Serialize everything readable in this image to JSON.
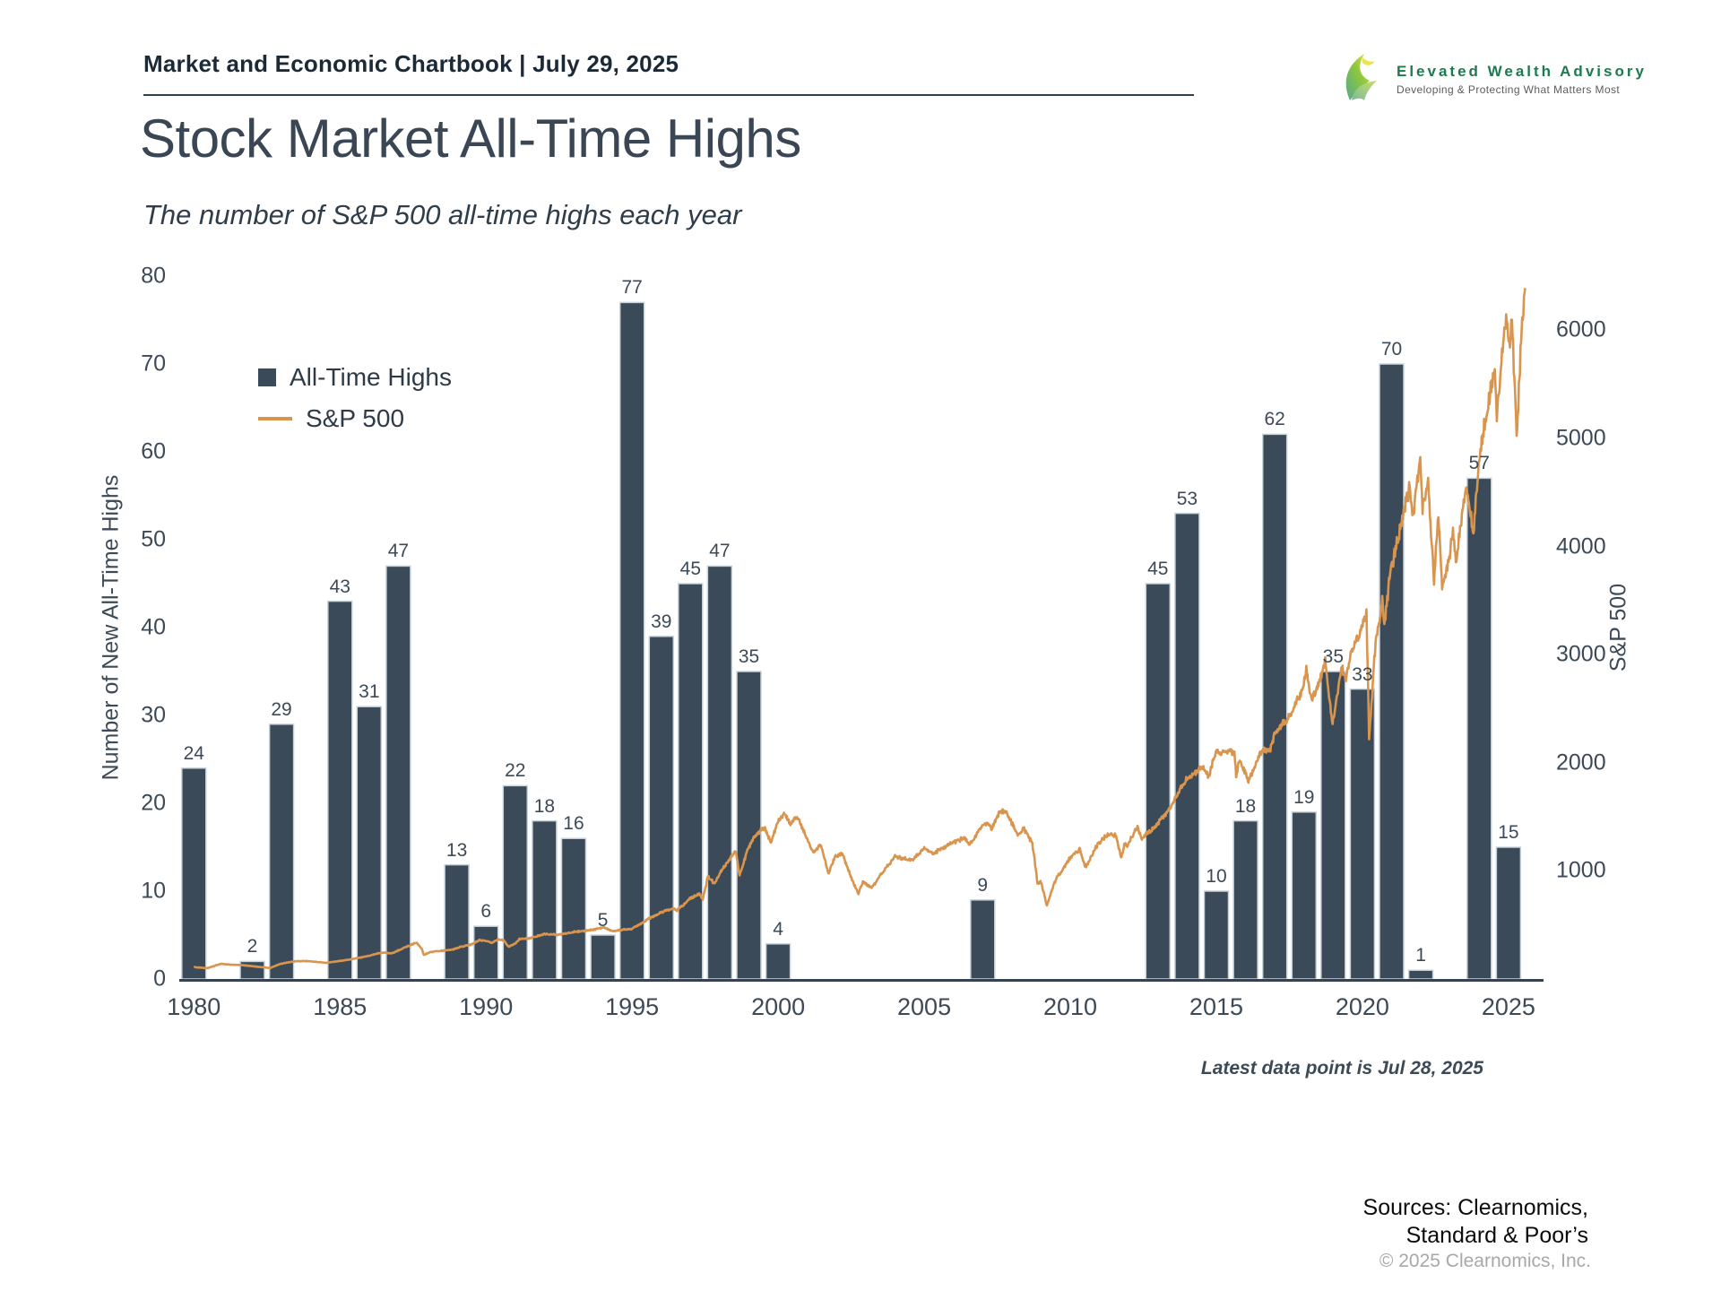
{
  "header": {
    "chartbook_label": "Market and Economic Chartbook | July 29, 2025",
    "logo": {
      "brand": "Elevated Wealth Advisory",
      "tagline": "Developing & Protecting What Matters Most",
      "brand_color": "#1e7a4d"
    },
    "title": "Stock Market All-Time Highs",
    "subtitle": "The number of S&P 500 all-time highs each year"
  },
  "footer": {
    "latest_note": "Latest data point is Jul 28, 2025",
    "sources_line1": "Sources: Clearnomics,",
    "sources_line2": "Standard & Poor’s",
    "copyright": "© 2025 Clearnomics, Inc."
  },
  "chart_data": {
    "type": "bar",
    "title": "Stock Market All-Time Highs",
    "subtitle": "The number of S&P 500 all-time highs each year",
    "legend_position": "upper-left-inside",
    "grid": false,
    "legend": [
      {
        "label": "All-Time Highs",
        "type": "bar",
        "color": "#3b4a59"
      },
      {
        "label": "S&P 500",
        "type": "line",
        "color": "#d9954d"
      }
    ],
    "x_axis": {
      "range": [
        1979.5,
        2026.2
      ],
      "ticks": [
        1980,
        1985,
        1990,
        1995,
        2000,
        2005,
        2010,
        2015,
        2020,
        2025
      ]
    },
    "left_axis": {
      "label": "Number of New All-Time Highs",
      "range": [
        0,
        80
      ],
      "ticks": [
        0,
        10,
        20,
        30,
        40,
        50,
        60,
        70,
        80
      ]
    },
    "right_axis": {
      "label": "S&P 500",
      "range": [
        0,
        6500
      ],
      "ticks": [
        1000,
        2000,
        3000,
        4000,
        5000,
        6000
      ]
    },
    "bars": {
      "series_name": "All-Time Highs",
      "years": [
        1980,
        1981,
        1982,
        1983,
        1984,
        1985,
        1986,
        1987,
        1988,
        1989,
        1990,
        1991,
        1992,
        1993,
        1994,
        1995,
        1996,
        1997,
        1998,
        1999,
        2000,
        2001,
        2002,
        2003,
        2004,
        2005,
        2006,
        2007,
        2008,
        2009,
        2010,
        2011,
        2012,
        2013,
        2014,
        2015,
        2016,
        2017,
        2018,
        2019,
        2020,
        2021,
        2022,
        2023,
        2024,
        2025
      ],
      "values": [
        24,
        0,
        2,
        29,
        0,
        43,
        31,
        47,
        0,
        13,
        6,
        22,
        18,
        16,
        5,
        77,
        39,
        45,
        47,
        35,
        4,
        0,
        0,
        0,
        0,
        0,
        0,
        9,
        0,
        0,
        0,
        0,
        0,
        45,
        53,
        10,
        18,
        62,
        19,
        35,
        33,
        70,
        1,
        0,
        57,
        15
      ]
    },
    "sp500_line": {
      "series_name": "S&P 500",
      "anchors": [
        [
          1980.0,
          110
        ],
        [
          1980.45,
          100
        ],
        [
          1980.92,
          140
        ],
        [
          1981.3,
          132
        ],
        [
          1981.6,
          130
        ],
        [
          1982.3,
          110
        ],
        [
          1982.62,
          102
        ],
        [
          1982.95,
          140
        ],
        [
          1983.5,
          165
        ],
        [
          1983.9,
          165
        ],
        [
          1984.3,
          155
        ],
        [
          1984.55,
          150
        ],
        [
          1985.0,
          167
        ],
        [
          1985.5,
          188
        ],
        [
          1985.95,
          211
        ],
        [
          1986.3,
          238
        ],
        [
          1986.55,
          245
        ],
        [
          1986.75,
          235
        ],
        [
          1987.0,
          264
        ],
        [
          1987.2,
          290
        ],
        [
          1987.62,
          336
        ],
        [
          1987.8,
          282
        ],
        [
          1987.87,
          224
        ],
        [
          1988.1,
          250
        ],
        [
          1988.5,
          262
        ],
        [
          1988.85,
          272
        ],
        [
          1989.1,
          295
        ],
        [
          1989.5,
          320
        ],
        [
          1989.78,
          359
        ],
        [
          1990.0,
          353
        ],
        [
          1990.2,
          333
        ],
        [
          1990.42,
          367
        ],
        [
          1990.6,
          358
        ],
        [
          1990.78,
          300
        ],
        [
          1991.0,
          325
        ],
        [
          1991.15,
          370
        ],
        [
          1991.5,
          378
        ],
        [
          1992.0,
          415
        ],
        [
          1992.5,
          410
        ],
        [
          1993.0,
          435
        ],
        [
          1993.5,
          450
        ],
        [
          1994.05,
          475
        ],
        [
          1994.3,
          445
        ],
        [
          1994.7,
          455
        ],
        [
          1995.0,
          465
        ],
        [
          1995.5,
          545
        ],
        [
          1996.0,
          618
        ],
        [
          1996.4,
          650
        ],
        [
          1996.55,
          635
        ],
        [
          1997.0,
          745
        ],
        [
          1997.3,
          790
        ],
        [
          1997.42,
          740
        ],
        [
          1997.6,
          950
        ],
        [
          1997.82,
          880
        ],
        [
          1998.0,
          975
        ],
        [
          1998.3,
          1100
        ],
        [
          1998.55,
          1180
        ],
        [
          1998.68,
          960
        ],
        [
          1998.95,
          1190
        ],
        [
          1999.2,
          1320
        ],
        [
          1999.55,
          1400
        ],
        [
          1999.75,
          1260
        ],
        [
          2000.0,
          1455
        ],
        [
          2000.22,
          1525
        ],
        [
          2000.42,
          1430
        ],
        [
          2000.65,
          1510
        ],
        [
          2000.95,
          1320
        ],
        [
          2001.2,
          1170
        ],
        [
          2001.45,
          1250
        ],
        [
          2001.72,
          975
        ],
        [
          2001.95,
          1140
        ],
        [
          2002.2,
          1160
        ],
        [
          2002.55,
          900
        ],
        [
          2002.75,
          790
        ],
        [
          2002.9,
          900
        ],
        [
          2003.2,
          840
        ],
        [
          2003.6,
          1000
        ],
        [
          2004.0,
          1130
        ],
        [
          2004.6,
          1100
        ],
        [
          2005.0,
          1210
        ],
        [
          2005.3,
          1160
        ],
        [
          2005.95,
          1260
        ],
        [
          2006.4,
          1310
        ],
        [
          2006.55,
          1240
        ],
        [
          2007.0,
          1420
        ],
        [
          2007.2,
          1440
        ],
        [
          2007.3,
          1380
        ],
        [
          2007.55,
          1530
        ],
        [
          2007.78,
          1560
        ],
        [
          2007.95,
          1470
        ],
        [
          2008.2,
          1330
        ],
        [
          2008.4,
          1400
        ],
        [
          2008.7,
          1250
        ],
        [
          2008.78,
          1100
        ],
        [
          2008.88,
          880
        ],
        [
          2009.0,
          900
        ],
        [
          2009.2,
          680
        ],
        [
          2009.5,
          920
        ],
        [
          2010.0,
          1120
        ],
        [
          2010.32,
          1200
        ],
        [
          2010.52,
          1030
        ],
        [
          2010.95,
          1250
        ],
        [
          2011.3,
          1340
        ],
        [
          2011.55,
          1330
        ],
        [
          2011.75,
          1120
        ],
        [
          2011.85,
          1250
        ],
        [
          2011.95,
          1230
        ],
        [
          2012.3,
          1410
        ],
        [
          2012.45,
          1300
        ],
        [
          2012.95,
          1420
        ],
        [
          2013.4,
          1580
        ],
        [
          2013.95,
          1840
        ],
        [
          2014.5,
          1960
        ],
        [
          2014.75,
          1870
        ],
        [
          2014.95,
          2080
        ],
        [
          2015.4,
          2120
        ],
        [
          2015.62,
          2100
        ],
        [
          2015.68,
          1880
        ],
        [
          2015.8,
          2020
        ],
        [
          2016.1,
          1830
        ],
        [
          2016.5,
          2090
        ],
        [
          2016.85,
          2130
        ],
        [
          2017.0,
          2270
        ],
        [
          2017.5,
          2430
        ],
        [
          2017.95,
          2680
        ],
        [
          2018.08,
          2870
        ],
        [
          2018.25,
          2590
        ],
        [
          2018.5,
          2720
        ],
        [
          2018.73,
          2930
        ],
        [
          2018.98,
          2350
        ],
        [
          2019.3,
          2900
        ],
        [
          2019.42,
          2750
        ],
        [
          2019.6,
          3020
        ],
        [
          2019.95,
          3230
        ],
        [
          2020.14,
          3386
        ],
        [
          2020.23,
          2237
        ],
        [
          2020.45,
          3100
        ],
        [
          2020.68,
          3500
        ],
        [
          2020.75,
          3270
        ],
        [
          2020.95,
          3750
        ],
        [
          2021.3,
          4180
        ],
        [
          2021.6,
          4530
        ],
        [
          2021.73,
          4300
        ],
        [
          2021.98,
          4790
        ],
        [
          2022.06,
          4360
        ],
        [
          2022.25,
          4600
        ],
        [
          2022.45,
          3670
        ],
        [
          2022.6,
          4300
        ],
        [
          2022.73,
          3580
        ],
        [
          2022.95,
          3850
        ],
        [
          2023.1,
          4150
        ],
        [
          2023.2,
          3860
        ],
        [
          2023.55,
          4580
        ],
        [
          2023.8,
          4120
        ],
        [
          2023.98,
          4770
        ],
        [
          2024.25,
          5250
        ],
        [
          2024.53,
          5650
        ],
        [
          2024.6,
          5190
        ],
        [
          2024.8,
          5850
        ],
        [
          2024.92,
          6090
        ],
        [
          2025.05,
          5850
        ],
        [
          2025.12,
          6120
        ],
        [
          2025.28,
          4985
        ],
        [
          2025.45,
          6000
        ],
        [
          2025.57,
          6390
        ]
      ]
    },
    "annotations": [
      "Latest data point is Jul 28, 2025"
    ]
  },
  "style": {
    "bar_color": "#3b4a59",
    "bar_border": "#c9d3da",
    "line_color": "#d9954d",
    "axis_color": "#36434f",
    "text_color": "#3c4a57"
  }
}
